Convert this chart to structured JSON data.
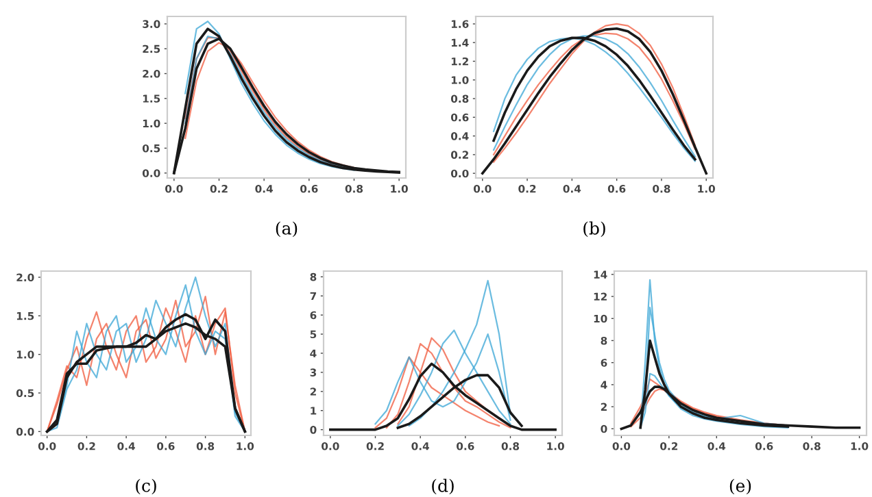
{
  "chart_data": [
    {
      "type": "line",
      "xlabel": "(a)",
      "x": [
        0,
        0.05,
        0.1,
        0.15,
        0.2,
        0.25,
        0.3,
        0.35,
        0.4,
        0.45,
        0.5,
        0.55,
        0.6,
        0.65,
        0.7,
        0.75,
        0.8,
        0.85,
        0.9,
        0.95,
        1.0
      ],
      "xlim": [
        -0.03,
        1.03
      ],
      "ylim": [
        -0.1,
        3.15
      ],
      "xticks": [
        {
          "value": 0,
          "label": "0.0"
        },
        {
          "value": 0.2,
          "label": "0.2"
        },
        {
          "value": 0.4,
          "label": "0.4"
        },
        {
          "value": 0.6,
          "label": "0.6"
        },
        {
          "value": 0.8,
          "label": "0.8"
        },
        {
          "value": 1,
          "label": "1.0"
        }
      ],
      "yticks": [
        {
          "value": 0,
          "label": "0.0"
        },
        {
          "value": 0.5,
          "label": "0.5"
        },
        {
          "value": 1,
          "label": "1.0"
        },
        {
          "value": 1.5,
          "label": "1.5"
        },
        {
          "value": 2,
          "label": "2.0"
        },
        {
          "value": 2.5,
          "label": "2.5"
        },
        {
          "value": 3,
          "label": "3.0"
        }
      ],
      "series": [
        {
          "color": "#f05a3c",
          "values": [
            null,
            1.1,
            2.3,
            2.72,
            2.72,
            2.45,
            2.05,
            1.65,
            1.28,
            0.97,
            0.72,
            0.53,
            0.38,
            0.27,
            0.19,
            0.13,
            0.09,
            null,
            null,
            null,
            null
          ]
        },
        {
          "color": "#f05a3c",
          "values": [
            null,
            0.7,
            1.85,
            2.45,
            2.62,
            2.5,
            2.2,
            1.82,
            1.45,
            1.12,
            0.85,
            0.63,
            0.46,
            0.33,
            0.23,
            0.16,
            0.11,
            null,
            null,
            null,
            null
          ]
        },
        {
          "color": "#3aa5d6",
          "values": [
            null,
            1.6,
            2.9,
            3.05,
            2.8,
            2.3,
            1.8,
            1.4,
            1.05,
            0.78,
            0.56,
            0.4,
            0.28,
            0.19,
            0.13,
            0.09,
            0.06,
            null,
            null,
            null,
            null
          ]
        },
        {
          "color": "#3aa5d6",
          "values": [
            null,
            1.0,
            2.3,
            2.75,
            2.7,
            2.4,
            1.98,
            1.58,
            1.22,
            0.92,
            0.68,
            0.5,
            0.36,
            0.25,
            0.17,
            0.12,
            0.08,
            null,
            null,
            null,
            null
          ]
        },
        {
          "color": "#1a1a1a",
          "values": [
            0,
            1.3,
            2.6,
            2.9,
            2.75,
            2.35,
            1.9,
            1.5,
            1.15,
            0.85,
            0.62,
            0.45,
            0.32,
            0.22,
            0.15,
            0.1,
            0.07,
            0.05,
            0.03,
            0.02,
            0.01
          ]
        },
        {
          "color": "#1a1a1a",
          "values": [
            0,
            0.9,
            2.1,
            2.6,
            2.7,
            2.5,
            2.12,
            1.72,
            1.35,
            1.03,
            0.78,
            0.58,
            0.42,
            0.3,
            0.21,
            0.15,
            0.1,
            0.07,
            0.05,
            0.03,
            0.02
          ]
        }
      ]
    },
    {
      "type": "line",
      "xlabel": "(b)",
      "x": [
        0,
        0.05,
        0.1,
        0.15,
        0.2,
        0.25,
        0.3,
        0.35,
        0.4,
        0.45,
        0.5,
        0.55,
        0.6,
        0.65,
        0.7,
        0.75,
        0.8,
        0.85,
        0.9,
        0.95,
        1.0
      ],
      "xlim": [
        -0.03,
        1.03
      ],
      "ylim": [
        -0.05,
        1.68
      ],
      "xticks": [
        {
          "value": 0,
          "label": "0.0"
        },
        {
          "value": 0.2,
          "label": "0.2"
        },
        {
          "value": 0.4,
          "label": "0.4"
        },
        {
          "value": 0.6,
          "label": "0.6"
        },
        {
          "value": 0.8,
          "label": "0.8"
        },
        {
          "value": 1,
          "label": "1.0"
        }
      ],
      "yticks": [
        {
          "value": 0,
          "label": "0.0"
        },
        {
          "value": 0.2,
          "label": "0.2"
        },
        {
          "value": 0.4,
          "label": "0.4"
        },
        {
          "value": 0.6,
          "label": "0.6"
        },
        {
          "value": 0.8,
          "label": "0.8"
        },
        {
          "value": 1,
          "label": "1.0"
        },
        {
          "value": 1.2,
          "label": "1.2"
        },
        {
          "value": 1.4,
          "label": "1.4"
        },
        {
          "value": 1.6,
          "label": "1.6"
        }
      ],
      "series": [
        {
          "color": "#f05a3c",
          "values": [
            null,
            0.12,
            0.27,
            0.43,
            0.6,
            0.78,
            0.96,
            1.12,
            1.28,
            1.41,
            1.51,
            1.58,
            1.6,
            1.58,
            1.5,
            1.37,
            1.17,
            0.92,
            0.62,
            0.3,
            null
          ]
        },
        {
          "color": "#f05a3c",
          "values": [
            null,
            0.2,
            0.4,
            0.6,
            0.78,
            0.95,
            1.1,
            1.24,
            1.36,
            1.44,
            1.48,
            1.5,
            1.49,
            1.44,
            1.35,
            1.2,
            1.01,
            0.78,
            0.53,
            0.26,
            null
          ]
        },
        {
          "color": "#3aa5d6",
          "values": [
            null,
            0.45,
            0.8,
            1.05,
            1.22,
            1.34,
            1.41,
            1.44,
            1.45,
            1.43,
            1.38,
            1.3,
            1.2,
            1.07,
            0.92,
            0.76,
            0.6,
            0.43,
            0.27,
            0.13,
            null
          ]
        },
        {
          "color": "#3aa5d6",
          "values": [
            null,
            0.25,
            0.5,
            0.73,
            0.95,
            1.13,
            1.27,
            1.38,
            1.44,
            1.47,
            1.47,
            1.44,
            1.38,
            1.28,
            1.14,
            0.97,
            0.78,
            0.57,
            0.37,
            0.18,
            null
          ]
        },
        {
          "color": "#1a1a1a",
          "values": [
            null,
            0.35,
            0.65,
            0.9,
            1.1,
            1.25,
            1.36,
            1.42,
            1.45,
            1.45,
            1.42,
            1.36,
            1.27,
            1.15,
            1.0,
            0.83,
            0.65,
            0.47,
            0.3,
            0.15,
            null
          ]
        },
        {
          "color": "#1a1a1a",
          "values": [
            0,
            0.15,
            0.32,
            0.5,
            0.68,
            0.86,
            1.03,
            1.18,
            1.32,
            1.43,
            1.5,
            1.54,
            1.55,
            1.52,
            1.44,
            1.3,
            1.1,
            0.85,
            0.57,
            0.28,
            0
          ]
        }
      ]
    },
    {
      "type": "line",
      "xlabel": "(c)",
      "x": [
        0,
        0.05,
        0.1,
        0.15,
        0.2,
        0.25,
        0.3,
        0.35,
        0.4,
        0.45,
        0.5,
        0.55,
        0.6,
        0.65,
        0.7,
        0.75,
        0.8,
        0.85,
        0.9,
        0.95,
        1.0
      ],
      "xlim": [
        -0.03,
        1.03
      ],
      "ylim": [
        -0.05,
        2.08
      ],
      "xticks": [
        {
          "value": 0,
          "label": "0.0"
        },
        {
          "value": 0.2,
          "label": "0.2"
        },
        {
          "value": 0.4,
          "label": "0.4"
        },
        {
          "value": 0.6,
          "label": "0.6"
        },
        {
          "value": 0.8,
          "label": "0.8"
        },
        {
          "value": 1,
          "label": "1.0"
        }
      ],
      "yticks": [
        {
          "value": 0,
          "label": "0.0"
        },
        {
          "value": 0.5,
          "label": "0.5"
        },
        {
          "value": 1,
          "label": "1.0"
        },
        {
          "value": 1.5,
          "label": "1.5"
        },
        {
          "value": 2,
          "label": "2.0"
        }
      ],
      "series": [
        {
          "color": "#f05a3c",
          "values": [
            0,
            0.4,
            0.85,
            0.7,
            1.2,
            1.55,
            1.1,
            0.8,
            1.3,
            1.5,
            0.9,
            1.1,
            1.6,
            1.3,
            0.9,
            1.5,
            1.0,
            1.4,
            1.6,
            0.5,
            0
          ]
        },
        {
          "color": "#f05a3c",
          "values": [
            0,
            0.35,
            0.8,
            1.1,
            0.6,
            1.2,
            1.4,
            1.0,
            0.7,
            1.3,
            1.45,
            0.95,
            1.2,
            1.7,
            1.1,
            1.3,
            1.75,
            1.0,
            1.55,
            0.6,
            0
          ]
        },
        {
          "color": "#3aa5d6",
          "values": [
            0,
            0.1,
            0.6,
            1.3,
            0.9,
            0.7,
            1.3,
            1.5,
            0.9,
            1.1,
            1.6,
            1.2,
            1.0,
            1.5,
            1.9,
            1.3,
            1.0,
            1.3,
            1.2,
            0.2,
            0
          ]
        },
        {
          "color": "#3aa5d6",
          "values": [
            0,
            0.05,
            0.55,
            0.8,
            1.4,
            1.0,
            0.8,
            1.3,
            1.4,
            0.9,
            1.2,
            1.7,
            1.4,
            1.1,
            1.6,
            2.0,
            1.5,
            1.1,
            1.4,
            0.25,
            0
          ]
        },
        {
          "color": "#1a1a1a",
          "values": [
            0,
            0.15,
            0.75,
            0.88,
            0.88,
            1.05,
            1.08,
            1.1,
            1.1,
            1.15,
            1.25,
            1.2,
            1.35,
            1.45,
            1.52,
            1.45,
            1.2,
            1.45,
            1.3,
            0.3,
            0
          ]
        },
        {
          "color": "#1a1a1a",
          "values": [
            0,
            0.1,
            0.7,
            0.9,
            1.0,
            1.1,
            1.1,
            1.1,
            1.1,
            1.1,
            1.1,
            1.2,
            1.3,
            1.35,
            1.4,
            1.35,
            1.25,
            1.2,
            1.1,
            0.3,
            0
          ]
        }
      ]
    },
    {
      "type": "line",
      "xlabel": "(d)",
      "x": [
        0,
        0.05,
        0.1,
        0.15,
        0.2,
        0.25,
        0.3,
        0.35,
        0.4,
        0.45,
        0.5,
        0.55,
        0.6,
        0.65,
        0.7,
        0.75,
        0.8,
        0.85,
        0.9,
        0.95,
        1.0
      ],
      "xlim": [
        -0.03,
        1.03
      ],
      "ylim": [
        -0.3,
        8.3
      ],
      "xticks": [
        {
          "value": 0,
          "label": "0.0"
        },
        {
          "value": 0.2,
          "label": "0.2"
        },
        {
          "value": 0.4,
          "label": "0.4"
        },
        {
          "value": 0.6,
          "label": "0.6"
        },
        {
          "value": 0.8,
          "label": "0.8"
        },
        {
          "value": 1,
          "label": "1.0"
        }
      ],
      "yticks": [
        0,
        1,
        2,
        3,
        4,
        5,
        6,
        7,
        8
      ],
      "series": [
        {
          "color": "#f05a3c",
          "values": [
            null,
            null,
            null,
            null,
            null,
            0.1,
            0.8,
            2.5,
            4.5,
            4.0,
            3.0,
            2.2,
            1.5,
            1.2,
            0.8,
            0.4,
            0.1,
            null,
            null,
            null,
            null
          ]
        },
        {
          "color": "#f05a3c",
          "values": [
            null,
            null,
            null,
            null,
            null,
            null,
            0.3,
            1.2,
            3.0,
            4.8,
            4.2,
            3.0,
            2.0,
            1.5,
            1.0,
            0.6,
            0.2,
            null,
            null,
            null,
            null
          ]
        },
        {
          "color": "#f05a3c",
          "values": [
            null,
            null,
            null,
            null,
            0.1,
            0.6,
            2.0,
            3.8,
            3.0,
            2.2,
            1.8,
            1.4,
            1.0,
            0.7,
            0.4,
            0.2,
            null,
            null,
            null,
            null,
            null
          ]
        },
        {
          "color": "#3aa5d6",
          "values": [
            null,
            null,
            null,
            null,
            null,
            null,
            null,
            0.2,
            0.6,
            1.2,
            2.0,
            3.0,
            4.2,
            5.5,
            7.8,
            5.0,
            0.8,
            null,
            null,
            null,
            null
          ]
        },
        {
          "color": "#3aa5d6",
          "values": [
            null,
            null,
            null,
            null,
            null,
            null,
            0.2,
            0.8,
            1.8,
            3.0,
            4.5,
            5.2,
            4.0,
            3.0,
            2.0,
            1.0,
            0.3,
            null,
            null,
            null,
            null
          ]
        },
        {
          "color": "#3aa5d6",
          "values": [
            null,
            null,
            null,
            null,
            0.3,
            1.0,
            2.5,
            3.8,
            2.5,
            1.5,
            1.2,
            1.5,
            2.5,
            3.5,
            5.0,
            3.0,
            0.5,
            null,
            null,
            null,
            null
          ]
        },
        {
          "color": "#1a1a1a",
          "values": [
            0,
            0,
            0,
            0,
            0,
            0.2,
            0.6,
            1.6,
            2.8,
            3.45,
            3.0,
            2.3,
            1.8,
            1.4,
            1.0,
            0.6,
            0.2,
            0,
            0,
            0,
            0
          ]
        },
        {
          "color": "#1a1a1a",
          "values": [
            null,
            null,
            null,
            null,
            null,
            null,
            0.1,
            0.3,
            0.7,
            1.2,
            1.7,
            2.2,
            2.6,
            2.85,
            2.85,
            2.2,
            0.9,
            0.2,
            null,
            null,
            null
          ]
        }
      ]
    },
    {
      "type": "line",
      "xlabel": "(e)",
      "x": [
        0,
        0.04,
        0.08,
        0.1,
        0.12,
        0.14,
        0.16,
        0.18,
        0.2,
        0.25,
        0.3,
        0.35,
        0.4,
        0.5,
        0.6,
        0.7,
        0.8,
        0.9,
        1.0
      ],
      "xlim": [
        -0.03,
        1.03
      ],
      "ylim": [
        -0.6,
        14.3
      ],
      "xticks": [
        {
          "value": 0,
          "label": "0.0"
        },
        {
          "value": 0.2,
          "label": "0.2"
        },
        {
          "value": 0.4,
          "label": "0.4"
        },
        {
          "value": 0.6,
          "label": "0.6"
        },
        {
          "value": 0.8,
          "label": "0.8"
        },
        {
          "value": 1,
          "label": "1.0"
        }
      ],
      "yticks": [
        0,
        2,
        4,
        6,
        8,
        10,
        12,
        14
      ],
      "series": [
        {
          "color": "#f05a3c",
          "values": [
            null,
            0.5,
            2.0,
            3.0,
            4.5,
            4.2,
            3.9,
            3.5,
            3.1,
            2.4,
            1.8,
            1.4,
            1.1,
            0.7,
            0.5,
            0.3,
            null,
            null,
            null
          ]
        },
        {
          "color": "#f05a3c",
          "values": [
            null,
            0.2,
            1.0,
            2.0,
            2.8,
            3.4,
            3.6,
            3.5,
            3.3,
            2.5,
            1.9,
            1.5,
            1.2,
            0.8,
            0.5,
            0.3,
            null,
            null,
            null
          ]
        },
        {
          "color": "#3aa5d6",
          "values": [
            null,
            null,
            0.2,
            6.0,
            13.5,
            8.0,
            5.5,
            4.0,
            3.0,
            1.8,
            1.2,
            0.9,
            0.7,
            0.4,
            0.2,
            0.1,
            null,
            null,
            null
          ]
        },
        {
          "color": "#3aa5d6",
          "values": [
            null,
            null,
            0.1,
            2.5,
            11.0,
            8.5,
            6.0,
            4.5,
            3.5,
            2.2,
            1.5,
            1.1,
            0.8,
            0.5,
            0.3,
            0.2,
            null,
            null,
            null
          ]
        },
        {
          "color": "#3aa5d6",
          "values": [
            null,
            null,
            0.1,
            1.5,
            5.0,
            4.8,
            4.2,
            3.6,
            3.0,
            2.0,
            1.5,
            1.1,
            0.9,
            1.2,
            0.5,
            0.3,
            null,
            null,
            null
          ]
        },
        {
          "color": "#1a1a1a",
          "values": [
            null,
            null,
            0.1,
            3.5,
            8.0,
            6.5,
            5.0,
            4.0,
            3.2,
            2.0,
            1.4,
            1.0,
            0.8,
            0.5,
            0.3,
            0.2,
            null,
            null,
            null
          ]
        },
        {
          "color": "#1a1a1a",
          "values": [
            0,
            0.3,
            1.5,
            2.5,
            3.4,
            3.8,
            3.8,
            3.6,
            3.2,
            2.3,
            1.7,
            1.3,
            1.0,
            0.7,
            0.4,
            0.3,
            0.2,
            0.1,
            0.1
          ]
        }
      ]
    }
  ]
}
